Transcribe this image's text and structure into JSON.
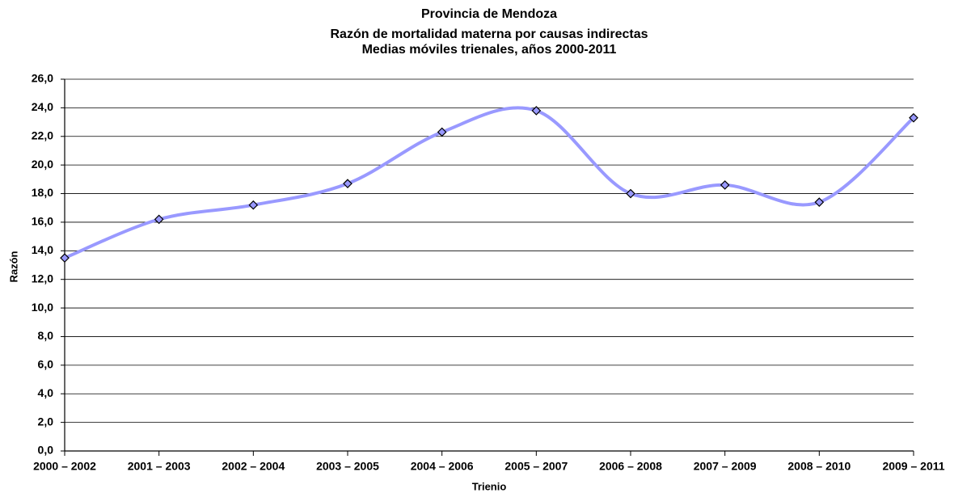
{
  "chart_data": {
    "type": "line",
    "title": [
      "Provincia de Mendoza",
      "Razón de mortalidad materna por causas indirectas",
      "Medias móviles trienales, años 2000-2011"
    ],
    "x_label": "Trienio",
    "y_label": "Razón",
    "categories": [
      "2000 – 2002",
      "2001 – 2003",
      "2002 – 2004",
      "2003 – 2005",
      "2004 – 2006",
      "2005 – 2007",
      "2006 – 2008",
      "2007 – 2009",
      "2008 – 2010",
      "2009 – 2011"
    ],
    "series": [
      {
        "name": "Razón",
        "color": "#9999ff",
        "values": [
          13.5,
          16.2,
          17.2,
          18.7,
          22.3,
          23.8,
          18.0,
          18.6,
          17.4,
          23.3
        ]
      }
    ],
    "ylim": [
      0,
      26
    ],
    "yticks": [
      {
        "value": 0,
        "label": "0,0"
      },
      {
        "value": 2,
        "label": "2,0"
      },
      {
        "value": 4,
        "label": "4,0"
      },
      {
        "value": 6,
        "label": "6,0"
      },
      {
        "value": 8,
        "label": "8,0"
      },
      {
        "value": 10,
        "label": "10,0"
      },
      {
        "value": 12,
        "label": "12,0"
      },
      {
        "value": 14,
        "label": "14,0"
      },
      {
        "value": 16,
        "label": "16,0"
      },
      {
        "value": 18,
        "label": "18,0"
      },
      {
        "value": 20,
        "label": "20,0"
      },
      {
        "value": 22,
        "label": "22,0"
      },
      {
        "value": 24,
        "label": "24,0"
      },
      {
        "value": 26,
        "label": "26,0"
      }
    ],
    "grid": true,
    "smooth": true
  }
}
